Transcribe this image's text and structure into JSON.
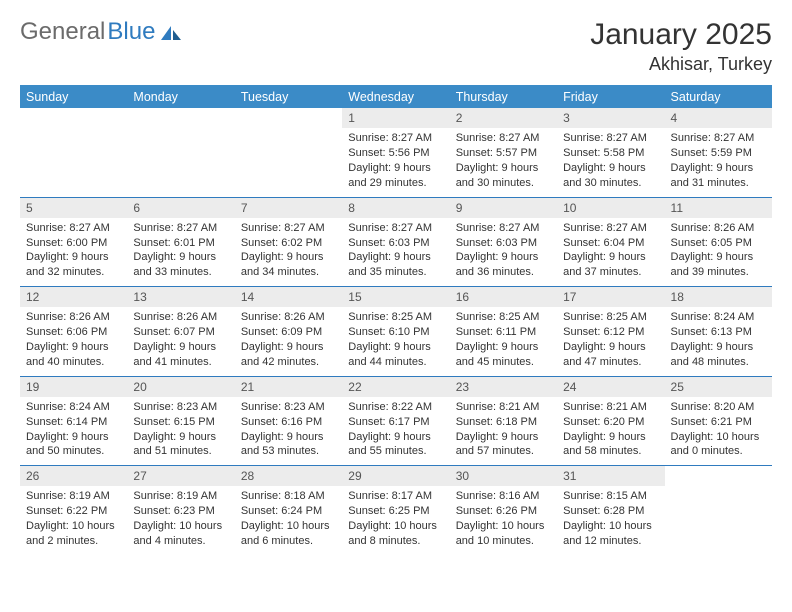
{
  "logo": {
    "text1": "General",
    "text2": "Blue"
  },
  "header": {
    "month_title": "January 2025",
    "location": "Akhisar, Turkey"
  },
  "colors": {
    "header_bg": "#3b8bc7",
    "header_fg": "#ffffff",
    "row_border": "#2f7bbf",
    "daynum_bg": "#ececec",
    "text": "#333333",
    "logo_gray": "#6b6b6b",
    "logo_blue": "#2f7bbf",
    "page_bg": "#ffffff"
  },
  "typography": {
    "month_title_size": 30,
    "location_size": 18,
    "weekday_size": 12.5,
    "daynum_size": 12,
    "body_size": 11
  },
  "weekdays": [
    "Sunday",
    "Monday",
    "Tuesday",
    "Wednesday",
    "Thursday",
    "Friday",
    "Saturday"
  ],
  "weeks": [
    [
      null,
      null,
      null,
      {
        "n": "1",
        "sr": "Sunrise: 8:27 AM",
        "ss": "Sunset: 5:56 PM",
        "dl1": "Daylight: 9 hours",
        "dl2": "and 29 minutes."
      },
      {
        "n": "2",
        "sr": "Sunrise: 8:27 AM",
        "ss": "Sunset: 5:57 PM",
        "dl1": "Daylight: 9 hours",
        "dl2": "and 30 minutes."
      },
      {
        "n": "3",
        "sr": "Sunrise: 8:27 AM",
        "ss": "Sunset: 5:58 PM",
        "dl1": "Daylight: 9 hours",
        "dl2": "and 30 minutes."
      },
      {
        "n": "4",
        "sr": "Sunrise: 8:27 AM",
        "ss": "Sunset: 5:59 PM",
        "dl1": "Daylight: 9 hours",
        "dl2": "and 31 minutes."
      }
    ],
    [
      {
        "n": "5",
        "sr": "Sunrise: 8:27 AM",
        "ss": "Sunset: 6:00 PM",
        "dl1": "Daylight: 9 hours",
        "dl2": "and 32 minutes."
      },
      {
        "n": "6",
        "sr": "Sunrise: 8:27 AM",
        "ss": "Sunset: 6:01 PM",
        "dl1": "Daylight: 9 hours",
        "dl2": "and 33 minutes."
      },
      {
        "n": "7",
        "sr": "Sunrise: 8:27 AM",
        "ss": "Sunset: 6:02 PM",
        "dl1": "Daylight: 9 hours",
        "dl2": "and 34 minutes."
      },
      {
        "n": "8",
        "sr": "Sunrise: 8:27 AM",
        "ss": "Sunset: 6:03 PM",
        "dl1": "Daylight: 9 hours",
        "dl2": "and 35 minutes."
      },
      {
        "n": "9",
        "sr": "Sunrise: 8:27 AM",
        "ss": "Sunset: 6:03 PM",
        "dl1": "Daylight: 9 hours",
        "dl2": "and 36 minutes."
      },
      {
        "n": "10",
        "sr": "Sunrise: 8:27 AM",
        "ss": "Sunset: 6:04 PM",
        "dl1": "Daylight: 9 hours",
        "dl2": "and 37 minutes."
      },
      {
        "n": "11",
        "sr": "Sunrise: 8:26 AM",
        "ss": "Sunset: 6:05 PM",
        "dl1": "Daylight: 9 hours",
        "dl2": "and 39 minutes."
      }
    ],
    [
      {
        "n": "12",
        "sr": "Sunrise: 8:26 AM",
        "ss": "Sunset: 6:06 PM",
        "dl1": "Daylight: 9 hours",
        "dl2": "and 40 minutes."
      },
      {
        "n": "13",
        "sr": "Sunrise: 8:26 AM",
        "ss": "Sunset: 6:07 PM",
        "dl1": "Daylight: 9 hours",
        "dl2": "and 41 minutes."
      },
      {
        "n": "14",
        "sr": "Sunrise: 8:26 AM",
        "ss": "Sunset: 6:09 PM",
        "dl1": "Daylight: 9 hours",
        "dl2": "and 42 minutes."
      },
      {
        "n": "15",
        "sr": "Sunrise: 8:25 AM",
        "ss": "Sunset: 6:10 PM",
        "dl1": "Daylight: 9 hours",
        "dl2": "and 44 minutes."
      },
      {
        "n": "16",
        "sr": "Sunrise: 8:25 AM",
        "ss": "Sunset: 6:11 PM",
        "dl1": "Daylight: 9 hours",
        "dl2": "and 45 minutes."
      },
      {
        "n": "17",
        "sr": "Sunrise: 8:25 AM",
        "ss": "Sunset: 6:12 PM",
        "dl1": "Daylight: 9 hours",
        "dl2": "and 47 minutes."
      },
      {
        "n": "18",
        "sr": "Sunrise: 8:24 AM",
        "ss": "Sunset: 6:13 PM",
        "dl1": "Daylight: 9 hours",
        "dl2": "and 48 minutes."
      }
    ],
    [
      {
        "n": "19",
        "sr": "Sunrise: 8:24 AM",
        "ss": "Sunset: 6:14 PM",
        "dl1": "Daylight: 9 hours",
        "dl2": "and 50 minutes."
      },
      {
        "n": "20",
        "sr": "Sunrise: 8:23 AM",
        "ss": "Sunset: 6:15 PM",
        "dl1": "Daylight: 9 hours",
        "dl2": "and 51 minutes."
      },
      {
        "n": "21",
        "sr": "Sunrise: 8:23 AM",
        "ss": "Sunset: 6:16 PM",
        "dl1": "Daylight: 9 hours",
        "dl2": "and 53 minutes."
      },
      {
        "n": "22",
        "sr": "Sunrise: 8:22 AM",
        "ss": "Sunset: 6:17 PM",
        "dl1": "Daylight: 9 hours",
        "dl2": "and 55 minutes."
      },
      {
        "n": "23",
        "sr": "Sunrise: 8:21 AM",
        "ss": "Sunset: 6:18 PM",
        "dl1": "Daylight: 9 hours",
        "dl2": "and 57 minutes."
      },
      {
        "n": "24",
        "sr": "Sunrise: 8:21 AM",
        "ss": "Sunset: 6:20 PM",
        "dl1": "Daylight: 9 hours",
        "dl2": "and 58 minutes."
      },
      {
        "n": "25",
        "sr": "Sunrise: 8:20 AM",
        "ss": "Sunset: 6:21 PM",
        "dl1": "Daylight: 10 hours",
        "dl2": "and 0 minutes."
      }
    ],
    [
      {
        "n": "26",
        "sr": "Sunrise: 8:19 AM",
        "ss": "Sunset: 6:22 PM",
        "dl1": "Daylight: 10 hours",
        "dl2": "and 2 minutes."
      },
      {
        "n": "27",
        "sr": "Sunrise: 8:19 AM",
        "ss": "Sunset: 6:23 PM",
        "dl1": "Daylight: 10 hours",
        "dl2": "and 4 minutes."
      },
      {
        "n": "28",
        "sr": "Sunrise: 8:18 AM",
        "ss": "Sunset: 6:24 PM",
        "dl1": "Daylight: 10 hours",
        "dl2": "and 6 minutes."
      },
      {
        "n": "29",
        "sr": "Sunrise: 8:17 AM",
        "ss": "Sunset: 6:25 PM",
        "dl1": "Daylight: 10 hours",
        "dl2": "and 8 minutes."
      },
      {
        "n": "30",
        "sr": "Sunrise: 8:16 AM",
        "ss": "Sunset: 6:26 PM",
        "dl1": "Daylight: 10 hours",
        "dl2": "and 10 minutes."
      },
      {
        "n": "31",
        "sr": "Sunrise: 8:15 AM",
        "ss": "Sunset: 6:28 PM",
        "dl1": "Daylight: 10 hours",
        "dl2": "and 12 minutes."
      },
      null
    ]
  ]
}
